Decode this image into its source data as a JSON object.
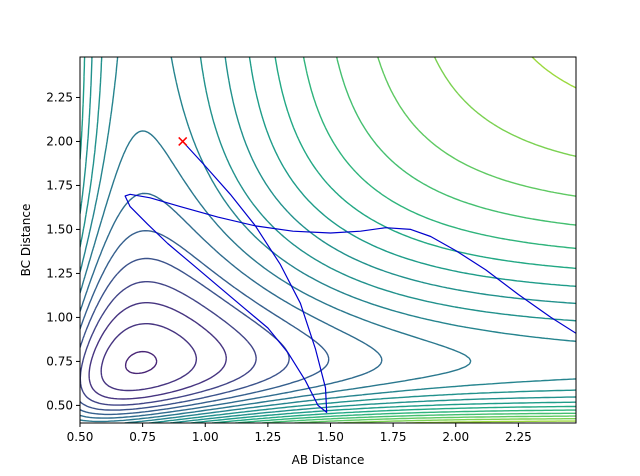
{
  "chart_data": {
    "type": "line",
    "title": "",
    "xlabel": "AB Distance",
    "ylabel": "BC Distance",
    "xlim": [
      0.5,
      2.48
    ],
    "ylim": [
      0.4,
      2.48
    ],
    "x_ticks": [
      0.5,
      0.75,
      1.0,
      1.25,
      1.5,
      1.75,
      2.0,
      2.25
    ],
    "x_tick_labels": [
      "0.50",
      "0.75",
      "1.00",
      "1.25",
      "1.50",
      "1.75",
      "2.00",
      "2.25"
    ],
    "y_ticks": [
      0.5,
      0.75,
      1.0,
      1.25,
      1.5,
      1.75,
      2.0,
      2.25
    ],
    "y_tick_labels": [
      "0.50",
      "0.75",
      "1.00",
      "1.25",
      "1.50",
      "1.75",
      "2.00",
      "2.25"
    ],
    "grid": false,
    "legend": "none",
    "colormap": "viridis",
    "contour_levels": 24,
    "contour_colors": [
      "#440154",
      "#471365",
      "#482475",
      "#463480",
      "#414487",
      "#3b528b",
      "#355f8d",
      "#2f6c8e",
      "#2a788e",
      "#25848e",
      "#21918c",
      "#1e9c89",
      "#22a884",
      "#2fb47c",
      "#44bf70",
      "#5ec962",
      "#7ad151",
      "#9bd93c",
      "#bddf26",
      "#dfe318",
      "#fde725"
    ],
    "start_marker": {
      "x": 0.91,
      "y": 2.0,
      "symbol": "x",
      "color": "#ff0000"
    },
    "trajectory_color": "#0000cd",
    "trajectory": {
      "x": [
        0.91,
        1.0,
        1.1,
        1.2,
        1.3,
        1.38,
        1.44,
        1.48,
        1.485,
        1.45,
        1.4,
        1.33,
        1.25,
        1.15,
        1.05,
        0.95,
        0.85,
        0.77,
        0.7,
        0.68,
        0.7,
        0.78,
        0.9,
        1.05,
        1.2,
        1.35,
        1.5,
        1.62,
        1.72,
        1.82,
        1.9,
        2.0,
        2.12,
        2.25,
        2.38,
        2.48
      ],
      "y": [
        2.0,
        1.86,
        1.7,
        1.52,
        1.3,
        1.08,
        0.82,
        0.6,
        0.46,
        0.5,
        0.64,
        0.8,
        0.94,
        1.06,
        1.18,
        1.3,
        1.42,
        1.53,
        1.63,
        1.69,
        1.7,
        1.68,
        1.63,
        1.57,
        1.52,
        1.49,
        1.48,
        1.49,
        1.51,
        1.5,
        1.46,
        1.38,
        1.27,
        1.13,
        1.0,
        0.91
      ]
    }
  }
}
